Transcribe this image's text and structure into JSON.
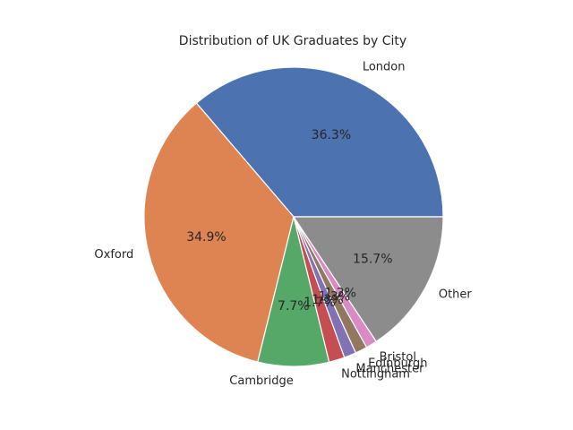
{
  "chart_data": {
    "type": "pie",
    "title": "Distribution of UK Graduates by City",
    "categories": [
      "London",
      "Oxford",
      "Cambridge",
      "Nottingham",
      "Manchester",
      "Edinburgh",
      "Bristol",
      "Other"
    ],
    "values": [
      36.3,
      34.9,
      7.7,
      1.7,
      1.3,
      1.3,
      1.2,
      15.7
    ],
    "percent_labels": [
      "36.3%",
      "34.9%",
      "7.7%",
      "1.7%",
      "1.3%",
      "1.3%",
      "1.2%",
      "15.7%"
    ],
    "colors": [
      "#4c72b0",
      "#dd8452",
      "#55a868",
      "#c44e52",
      "#8172b3",
      "#937860",
      "#da8bc3",
      "#8c8c8c"
    ],
    "start_angle_deg": 0,
    "direction": "counterclockwise",
    "edge_color": "#ffffff",
    "legend": "none"
  }
}
